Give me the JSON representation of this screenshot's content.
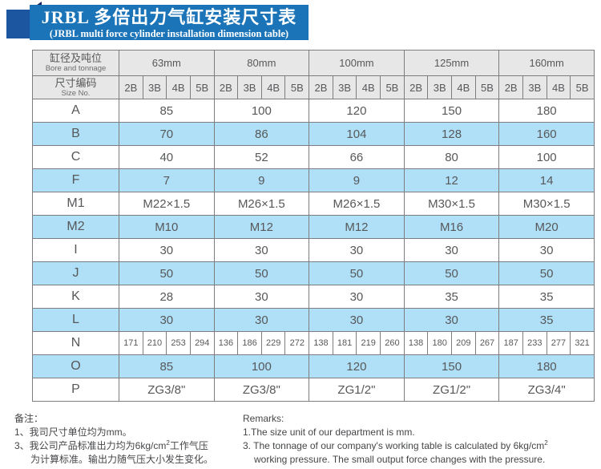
{
  "banner": {
    "title_cn": "JRBL 多倍出力气缸安装尺寸表",
    "title_en": "(JRBL multi force cylinder installation dimension table)"
  },
  "colors": {
    "banner_blue": "#1b74b8",
    "ribbon_blue": "#1d56a0",
    "fold_navy": "#14235f",
    "header_gray": "#e7e7e7",
    "row_blue": "#afe0f7",
    "border_gray": "#7d7d7d"
  },
  "table": {
    "corner_row1": {
      "cn": "缸径及吨位",
      "en": "Bore and tonnage"
    },
    "corner_row2": {
      "cn": "尺寸编码",
      "en": "Size No."
    },
    "groups": [
      "63mm",
      "80mm",
      "100mm",
      "125mm",
      "160mm"
    ],
    "size_codes": [
      "2B",
      "3B",
      "4B",
      "5B"
    ],
    "rows": [
      {
        "label": "A",
        "type": "merged",
        "shade": false,
        "values": [
          "85",
          "100",
          "120",
          "150",
          "180"
        ]
      },
      {
        "label": "B",
        "type": "merged",
        "shade": true,
        "values": [
          "70",
          "86",
          "104",
          "128",
          "160"
        ]
      },
      {
        "label": "C",
        "type": "merged",
        "shade": false,
        "values": [
          "40",
          "52",
          "66",
          "80",
          "100"
        ]
      },
      {
        "label": "F",
        "type": "merged",
        "shade": true,
        "values": [
          "7",
          "9",
          "9",
          "12",
          "14"
        ]
      },
      {
        "label": "M1",
        "type": "merged",
        "shade": false,
        "values": [
          "M22×1.5",
          "M26×1.5",
          "M26×1.5",
          "M30×1.5",
          "M30×1.5"
        ]
      },
      {
        "label": "M2",
        "type": "merged",
        "shade": true,
        "values": [
          "M10",
          "M12",
          "M12",
          "M16",
          "M20"
        ]
      },
      {
        "label": "I",
        "type": "merged",
        "shade": false,
        "values": [
          "30",
          "30",
          "30",
          "30",
          "30"
        ]
      },
      {
        "label": "J",
        "type": "merged",
        "shade": true,
        "values": [
          "50",
          "50",
          "50",
          "50",
          "50"
        ]
      },
      {
        "label": "K",
        "type": "merged",
        "shade": false,
        "values": [
          "28",
          "30",
          "30",
          "35",
          "35"
        ]
      },
      {
        "label": "L",
        "type": "merged",
        "shade": true,
        "values": [
          "30",
          "30",
          "30",
          "30",
          "35"
        ]
      },
      {
        "label": "N",
        "type": "percol",
        "shade": false,
        "values": [
          "171",
          "210",
          "253",
          "294",
          "136",
          "186",
          "229",
          "272",
          "138",
          "181",
          "219",
          "260",
          "138",
          "180",
          "209",
          "267",
          "187",
          "233",
          "277",
          "321"
        ]
      },
      {
        "label": "O",
        "type": "merged",
        "shade": true,
        "values": [
          "85",
          "100",
          "120",
          "150",
          "180"
        ]
      },
      {
        "label": "P",
        "type": "merged",
        "shade": false,
        "values": [
          "ZG3/8\"",
          "ZG3/8\"",
          "ZG1/2\"",
          "ZG1/2\"",
          "ZG3/4\""
        ]
      }
    ]
  },
  "notes": {
    "cn": {
      "heading": "备注：",
      "line1": "1、我司尺寸单位均为mm。",
      "line2_pre": "3、我公司产品标准出力均为6kg/cm",
      "line2_sup": "2",
      "line2_post": "工作气压",
      "line3": "为计算标准。输出力随气压大小发生变化。"
    },
    "en": {
      "heading": "Remarks:",
      "line1": "1.The size unit of our department is mm.",
      "line2_pre": "3. The tonnage of our company's working table is calculated by 6kg/cm",
      "line2_sup": "2",
      "line2_post": "",
      "line3": "working pressure. The small output force changes with the pressure."
    }
  }
}
